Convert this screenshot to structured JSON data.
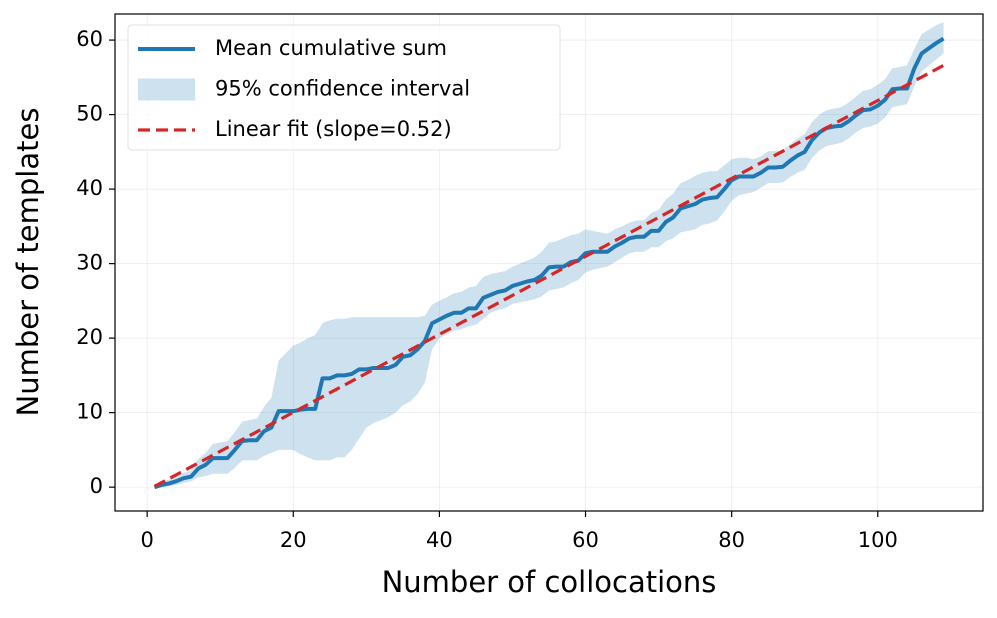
{
  "chart_data": {
    "type": "line",
    "x_label": "Number of collocations",
    "y_label": "Number of templates",
    "x": [
      1,
      2,
      3,
      4,
      5,
      6,
      7,
      8,
      9,
      10,
      11,
      12,
      13,
      14,
      15,
      16,
      17,
      18,
      19,
      20,
      21,
      22,
      23,
      24,
      25,
      26,
      27,
      28,
      29,
      30,
      31,
      32,
      33,
      34,
      35,
      36,
      37,
      38,
      39,
      40,
      41,
      42,
      43,
      44,
      45,
      46,
      47,
      48,
      49,
      50,
      51,
      52,
      53,
      54,
      55,
      56,
      57,
      58,
      59,
      60,
      61,
      62,
      63,
      64,
      65,
      66,
      67,
      68,
      69,
      70,
      71,
      72,
      73,
      74,
      75,
      76,
      77,
      78,
      79,
      80,
      81,
      82,
      83,
      84,
      85,
      86,
      87,
      88,
      89,
      90,
      91,
      92,
      93,
      94,
      95,
      96,
      97,
      98,
      99,
      100,
      101,
      102,
      103,
      104,
      105,
      106,
      107,
      108,
      109
    ],
    "series": [
      {
        "name": "Mean cumulative sum",
        "color": "#1f77b4",
        "values": [
          0,
          0.3,
          0.5,
          0.8,
          1.2,
          1.4,
          2.5,
          3,
          3.9,
          3.9,
          3.9,
          5,
          6.2,
          6.3,
          6.3,
          7.5,
          8,
          10.2,
          10.2,
          10.2,
          10.4,
          10.5,
          10.5,
          14.6,
          14.6,
          15,
          15,
          15.2,
          15.8,
          15.8,
          16,
          16,
          16,
          16.4,
          17.5,
          17.7,
          18.5,
          19.6,
          22,
          22.5,
          23,
          23.4,
          23.4,
          24,
          24,
          25.4,
          25.8,
          26.2,
          26.4,
          27,
          27.3,
          27.6,
          27.8,
          28.4,
          29.5,
          29.6,
          29.6,
          30.2,
          30.4,
          31.4,
          31.6,
          31.6,
          31.6,
          32.3,
          32.8,
          33.4,
          33.6,
          33.6,
          34.4,
          34.4,
          35.6,
          36.2,
          37.4,
          37.7,
          38,
          38.6,
          38.8,
          38.9,
          40,
          41.2,
          41.7,
          41.7,
          41.7,
          42.2,
          42.9,
          42.9,
          43,
          43.8,
          44.5,
          45,
          46.6,
          47.6,
          48.2,
          48.4,
          48.5,
          49.1,
          49.9,
          50.6,
          50.7,
          51.2,
          52,
          53.4,
          53.5,
          53.5,
          56.2,
          58.2,
          58.9,
          59.6,
          60.2
        ]
      },
      {
        "name": "95% confidence interval",
        "color": "#1f77b4",
        "lower": [
          -0.2,
          0,
          0.1,
          0.3,
          0.6,
          0.8,
          1.3,
          1.5,
          1.8,
          1.8,
          1.8,
          2.6,
          3.6,
          3.6,
          3.6,
          4.2,
          4.6,
          5,
          5,
          5,
          4.4,
          4,
          3.6,
          3.6,
          3.6,
          4,
          4,
          5,
          6.5,
          8,
          8.6,
          9,
          9.4,
          10,
          11,
          11.5,
          12.5,
          14,
          18.5,
          20,
          20.5,
          21,
          21.2,
          21.6,
          21.8,
          22.6,
          23.4,
          23.8,
          24,
          24.6,
          24.8,
          25,
          25.2,
          25.6,
          26.4,
          26.6,
          26.8,
          27.4,
          27.8,
          28.8,
          29.2,
          29.4,
          29.6,
          30.2,
          30.8,
          31.4,
          31.6,
          31.6,
          32.2,
          32.2,
          33,
          33.4,
          34.2,
          34.4,
          34.6,
          35.2,
          35.4,
          35.8,
          37,
          38.4,
          39.2,
          39.4,
          39.6,
          40.2,
          40.8,
          40.8,
          40.9,
          41.6,
          42.2,
          42.6,
          44.2,
          45.2,
          45.8,
          46,
          46.2,
          46.8,
          47.6,
          48.2,
          48.4,
          48.8,
          49.6,
          51,
          51.2,
          51.4,
          53.8,
          55.8,
          56.6,
          57.4,
          58.2
        ],
        "upper": [
          0.2,
          0.6,
          1,
          1.4,
          1.9,
          2.2,
          3.8,
          4.6,
          5.8,
          6,
          6.2,
          7.4,
          8.8,
          9,
          9.2,
          10.8,
          12,
          17,
          18,
          19,
          19.4,
          20,
          20.4,
          22,
          22.4,
          22.6,
          22.6,
          22.8,
          22.8,
          22.8,
          22.8,
          22.8,
          22.8,
          22.8,
          22.8,
          22.8,
          22.8,
          23,
          24.5,
          25,
          25.5,
          26,
          26.2,
          26.8,
          27,
          28.2,
          28.6,
          28.8,
          29,
          29.6,
          30,
          30.4,
          30.8,
          31.6,
          32.8,
          33,
          33.4,
          33.8,
          34,
          34.6,
          34.4,
          34.2,
          34,
          34.6,
          35,
          35.5,
          35.8,
          35.8,
          36.8,
          37.2,
          38.6,
          39.4,
          40.8,
          41.2,
          41.8,
          42.2,
          42.4,
          42.4,
          43.2,
          44,
          44.2,
          44.2,
          44,
          44.4,
          45.1,
          45.1,
          45.2,
          46,
          46.8,
          47.4,
          49,
          50,
          50.6,
          50.8,
          51,
          51.6,
          52.4,
          53.2,
          53.4,
          54,
          54.8,
          56.2,
          56.4,
          56.6,
          58.8,
          60.8,
          61.4,
          62,
          62.4
        ]
      },
      {
        "name": "Linear fit (slope=0.52)",
        "color": "#d62728",
        "x": [
          1,
          109
        ],
        "values": [
          0.1,
          56.6
        ],
        "dashed": true
      }
    ],
    "xlim": [
      -4.4,
      114.4
    ],
    "ylim": [
      -3.2,
      63.5
    ],
    "xticks": [
      0,
      20,
      40,
      60,
      80,
      100
    ],
    "yticks": [
      0,
      10,
      20,
      30,
      40,
      50,
      60
    ],
    "grid": true,
    "legend": "upper left"
  }
}
